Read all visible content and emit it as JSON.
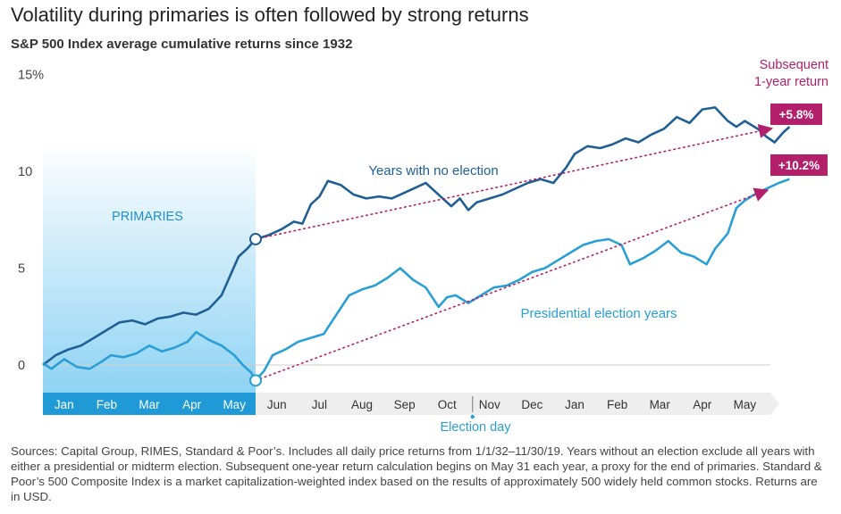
{
  "title": "Volatility during primaries is often followed by strong returns",
  "subtitle": "S&P 500 Index average cumulative returns since 1932",
  "footnote": "Sources: Capital Group, RIMES, Standard & Poor’s. Includes all daily price returns from 1/1/32–11/30/19. Years without an election exclude all years with either a presidential or midterm election. Subsequent one-year return calculation begins on May 31 each year, a proxy for the end of primaries. Standard & Poor’s 500 Composite Index is a market capitalization-weighted index based on the results of approximately 500 widely held common stocks. Returns are in USD.",
  "colors": {
    "no_election": "#1f5f95",
    "election": "#2a9fd6",
    "accent": "#b21f6a",
    "primaries_band_top": "#ffffff",
    "primaries_band_bottom": "#8fd3f4",
    "axis_band_primaries": "#1f9ad6",
    "axis_band_rest": "#eeeeee"
  },
  "chart_data": {
    "type": "line",
    "title": "Volatility during primaries is often followed by strong returns",
    "subtitle": "S&P 500 Index average cumulative returns since 1932",
    "xlabel": "",
    "ylabel": "",
    "y_ticks": [
      "15%",
      "10",
      "5",
      "0"
    ],
    "y_tick_values": [
      15,
      10,
      5,
      0
    ],
    "ylim": [
      -1.8,
      15
    ],
    "x_months": [
      "Jan",
      "Feb",
      "Mar",
      "Apr",
      "May",
      "Jun",
      "Jul",
      "Aug",
      "Sep",
      "Oct",
      "Nov",
      "Dec",
      "Jan",
      "Feb",
      "Mar",
      "Apr",
      "May"
    ],
    "x_unit": "months from start of year (0 = Jan 1, 17 = end of May of following year)",
    "grid": false,
    "series": [
      {
        "name": "Years with no election",
        "points": [
          [
            0,
            0
          ],
          [
            0.3,
            0.5
          ],
          [
            0.6,
            0.8
          ],
          [
            0.9,
            1.0
          ],
          [
            1.2,
            1.4
          ],
          [
            1.5,
            1.8
          ],
          [
            1.8,
            2.2
          ],
          [
            2.1,
            2.3
          ],
          [
            2.4,
            2.1
          ],
          [
            2.7,
            2.4
          ],
          [
            3.0,
            2.5
          ],
          [
            3.3,
            2.7
          ],
          [
            3.6,
            2.6
          ],
          [
            3.9,
            2.9
          ],
          [
            4.2,
            3.6
          ],
          [
            4.4,
            4.6
          ],
          [
            4.6,
            5.6
          ],
          [
            4.8,
            6.0
          ],
          [
            5.0,
            6.5
          ],
          [
            5.3,
            6.7
          ],
          [
            5.6,
            7.0
          ],
          [
            5.9,
            7.4
          ],
          [
            6.1,
            7.3
          ],
          [
            6.3,
            8.3
          ],
          [
            6.5,
            8.7
          ],
          [
            6.7,
            9.5
          ],
          [
            7.0,
            9.3
          ],
          [
            7.3,
            8.8
          ],
          [
            7.6,
            8.6
          ],
          [
            7.9,
            8.7
          ],
          [
            8.2,
            8.6
          ],
          [
            8.5,
            8.9
          ],
          [
            8.8,
            9.2
          ],
          [
            9.0,
            9.4
          ],
          [
            9.2,
            9.0
          ],
          [
            9.4,
            8.6
          ],
          [
            9.6,
            8.2
          ],
          [
            9.8,
            8.6
          ],
          [
            10.0,
            8.0
          ],
          [
            10.2,
            8.4
          ],
          [
            10.5,
            8.6
          ],
          [
            10.8,
            8.8
          ],
          [
            11.1,
            9.1
          ],
          [
            11.4,
            9.4
          ],
          [
            11.7,
            9.6
          ],
          [
            12.0,
            9.4
          ],
          [
            12.3,
            10.2
          ],
          [
            12.5,
            10.9
          ],
          [
            12.8,
            11.3
          ],
          [
            13.1,
            11.2
          ],
          [
            13.4,
            11.4
          ],
          [
            13.7,
            11.7
          ],
          [
            14.0,
            11.5
          ],
          [
            14.3,
            11.9
          ],
          [
            14.6,
            12.2
          ],
          [
            14.9,
            12.8
          ],
          [
            15.2,
            12.5
          ],
          [
            15.5,
            13.2
          ],
          [
            15.8,
            13.3
          ],
          [
            16.1,
            12.6
          ],
          [
            16.3,
            12.3
          ],
          [
            16.5,
            12.6
          ],
          [
            16.8,
            12.2
          ],
          [
            17.0,
            11.8
          ],
          [
            17.2,
            11.5
          ],
          [
            17.4,
            12.0
          ],
          [
            17.55,
            12.3
          ]
        ]
      },
      {
        "name": "Presidential election years",
        "points": [
          [
            0,
            0.1
          ],
          [
            0.2,
            -0.2
          ],
          [
            0.5,
            0.3
          ],
          [
            0.8,
            -0.1
          ],
          [
            1.1,
            -0.2
          ],
          [
            1.4,
            0.2
          ],
          [
            1.6,
            0.5
          ],
          [
            1.9,
            0.4
          ],
          [
            2.2,
            0.6
          ],
          [
            2.5,
            1.0
          ],
          [
            2.8,
            0.7
          ],
          [
            3.1,
            0.9
          ],
          [
            3.4,
            1.2
          ],
          [
            3.6,
            1.7
          ],
          [
            3.9,
            1.3
          ],
          [
            4.2,
            1.0
          ],
          [
            4.5,
            0.5
          ],
          [
            4.7,
            0.0
          ],
          [
            4.9,
            -0.4
          ],
          [
            5.0,
            -0.8
          ],
          [
            5.2,
            -0.3
          ],
          [
            5.4,
            0.5
          ],
          [
            5.7,
            0.8
          ],
          [
            6.0,
            1.2
          ],
          [
            6.3,
            1.4
          ],
          [
            6.6,
            1.6
          ],
          [
            6.9,
            2.6
          ],
          [
            7.2,
            3.6
          ],
          [
            7.5,
            3.9
          ],
          [
            7.8,
            4.1
          ],
          [
            8.1,
            4.5
          ],
          [
            8.4,
            5.0
          ],
          [
            8.7,
            4.4
          ],
          [
            9.0,
            4.0
          ],
          [
            9.3,
            3.0
          ],
          [
            9.5,
            3.5
          ],
          [
            9.7,
            3.6
          ],
          [
            10.0,
            3.2
          ],
          [
            10.3,
            3.6
          ],
          [
            10.6,
            4.0
          ],
          [
            10.9,
            4.1
          ],
          [
            11.2,
            4.4
          ],
          [
            11.5,
            4.8
          ],
          [
            11.8,
            5.0
          ],
          [
            12.1,
            5.4
          ],
          [
            12.4,
            5.8
          ],
          [
            12.7,
            6.2
          ],
          [
            13.0,
            6.4
          ],
          [
            13.3,
            6.5
          ],
          [
            13.6,
            6.2
          ],
          [
            13.8,
            5.2
          ],
          [
            14.1,
            5.5
          ],
          [
            14.4,
            5.9
          ],
          [
            14.7,
            6.4
          ],
          [
            15.0,
            5.8
          ],
          [
            15.3,
            5.6
          ],
          [
            15.6,
            5.2
          ],
          [
            15.8,
            6.0
          ],
          [
            16.1,
            6.8
          ],
          [
            16.3,
            8.1
          ],
          [
            16.5,
            8.5
          ],
          [
            16.8,
            8.9
          ],
          [
            17.1,
            9.2
          ],
          [
            17.3,
            9.4
          ],
          [
            17.55,
            9.6
          ]
        ]
      }
    ],
    "subsequent_lines": [
      {
        "from": [
          5.0,
          6.5
        ],
        "to": [
          17.1,
          12.2
        ]
      },
      {
        "from": [
          5.0,
          -0.8
        ],
        "to": [
          17.0,
          9.0
        ]
      }
    ],
    "shaded_region": {
      "x_start": 0,
      "x_end": 5,
      "label": "PRIMARIES"
    },
    "annotations": {
      "no_election_label": "Years with no election",
      "election_label": "Presidential election years",
      "election_day": "Election day",
      "election_day_x": 10.1,
      "subsequent_label_line1": "Subsequent",
      "subsequent_label_line2": "1-year return",
      "badge_no_election": "+5.8%",
      "badge_election": "+10.2%"
    }
  }
}
